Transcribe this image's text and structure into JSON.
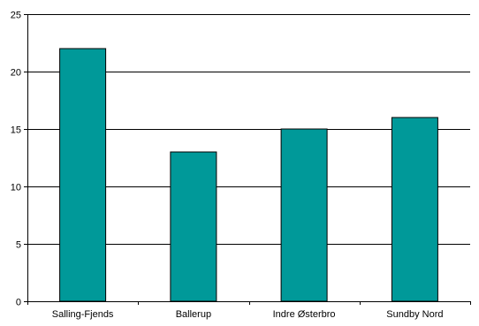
{
  "chart_data": {
    "type": "bar",
    "categories": [
      "Salling-Fjends",
      "Ballerup",
      "Indre Østerbro",
      "Sundby Nord"
    ],
    "values": [
      22,
      13,
      15,
      16
    ],
    "ylim": [
      0,
      25
    ],
    "yticks": [
      0,
      5,
      10,
      15,
      20,
      25
    ],
    "grid": true,
    "colors": {
      "bar": "#009999",
      "bar_stroke": "#000000",
      "grid": "#000000",
      "axis": "#000000"
    }
  }
}
